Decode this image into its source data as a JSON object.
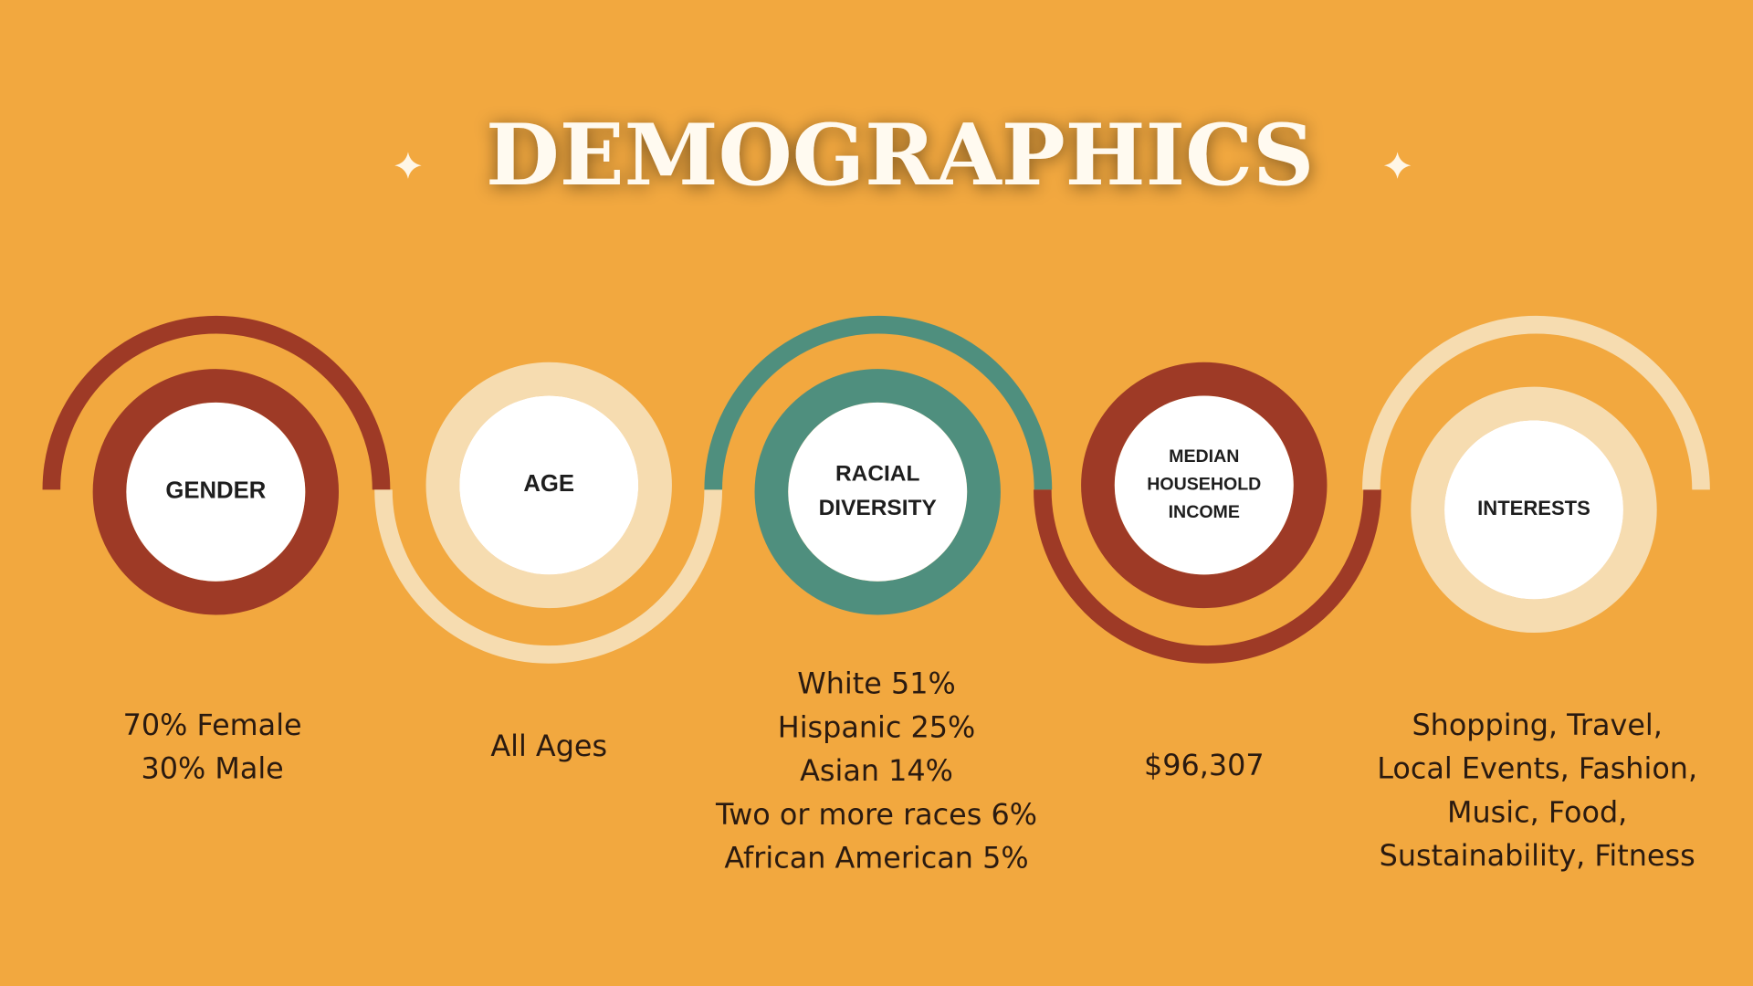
{
  "title": "DEMOGRAPHICS",
  "items": [
    {
      "label": [
        "GENDER"
      ],
      "details": [
        "70% Female",
        "30% Male"
      ]
    },
    {
      "label": [
        "AGE"
      ],
      "details": [
        "All Ages"
      ]
    },
    {
      "label": [
        "RACIAL",
        "DIVERSITY"
      ],
      "details": [
        "White 51%",
        "Hispanic 25%",
        "Asian 14%",
        "Two or more races 6%",
        "African American 5%"
      ]
    },
    {
      "label": [
        "MEDIAN",
        "HOUSEHOLD",
        "INCOME"
      ],
      "details": [
        "$96,307"
      ]
    },
    {
      "label": [
        "INTERESTS"
      ],
      "details": [
        "Shopping, Travel,",
        "Local Events, Fashion,",
        "Music, Food,",
        "Sustainability, Fitness"
      ]
    }
  ]
}
